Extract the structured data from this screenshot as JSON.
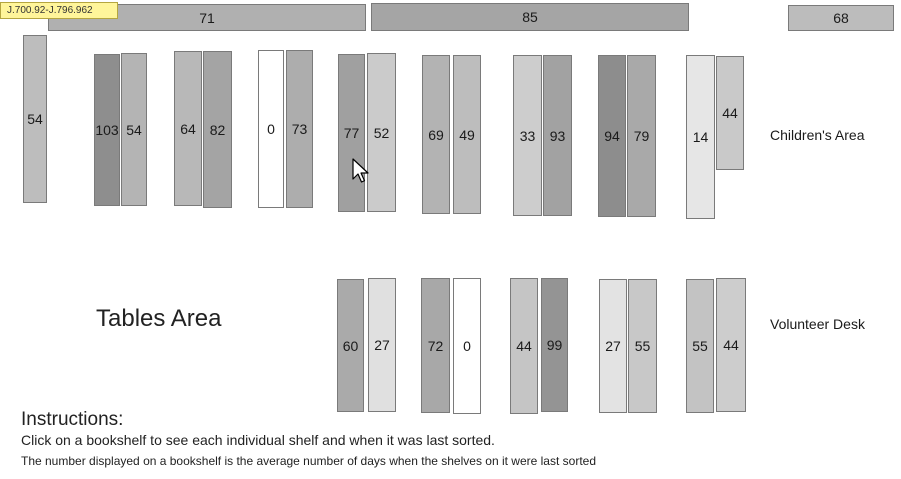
{
  "tooltip": "J.700.92-J.796.962",
  "top_shelves": [
    {
      "value": "71",
      "color": "#b0b0b0"
    },
    {
      "value": "85",
      "color": "#a5a5a5"
    },
    {
      "value": "68",
      "color": "#bcbcbc"
    }
  ],
  "bookshelves_row1": [
    {
      "value": "54",
      "color": "#bdbdbd"
    },
    {
      "value": "103",
      "color": "#8e8e8e"
    },
    {
      "value": "54",
      "color": "#b4b4b4"
    },
    {
      "value": "64",
      "color": "#b8b8b8"
    },
    {
      "value": "82",
      "color": "#a4a4a4"
    },
    {
      "value": "0",
      "color": "#ffffff"
    },
    {
      "value": "73",
      "color": "#adadad"
    },
    {
      "value": "77",
      "color": "#a0a0a0"
    },
    {
      "value": "52",
      "color": "#cbcbcb"
    },
    {
      "value": "69",
      "color": "#b3b3b3"
    },
    {
      "value": "49",
      "color": "#bdbdbd"
    },
    {
      "value": "33",
      "color": "#cdcdcd"
    },
    {
      "value": "93",
      "color": "#a2a2a2"
    },
    {
      "value": "94",
      "color": "#8d8d8d"
    },
    {
      "value": "79",
      "color": "#a9a9a9"
    },
    {
      "value": "14",
      "color": "#e6e6e6"
    },
    {
      "value": "44",
      "color": "#c9c9c9"
    }
  ],
  "bookshelves_row2": [
    {
      "value": "60",
      "color": "#aaaaaa"
    },
    {
      "value": "27",
      "color": "#e0e0e0"
    },
    {
      "value": "72",
      "color": "#a8a8a8"
    },
    {
      "value": "0",
      "color": "#ffffff"
    },
    {
      "value": "44",
      "color": "#c5c5c5"
    },
    {
      "value": "99",
      "color": "#949494"
    },
    {
      "value": "27",
      "color": "#e3e3e3"
    },
    {
      "value": "55",
      "color": "#c8c8c8"
    },
    {
      "value": "55",
      "color": "#c3c3c3"
    },
    {
      "value": "44",
      "color": "#cdcdcd"
    }
  ],
  "labels": {
    "childrens_area": "Children's Area",
    "volunteer_desk": "Volunteer Desk",
    "tables_area": "Tables Area"
  },
  "instructions": {
    "title": "Instructions:",
    "line1": "Click on a bookshelf to see each individual shelf and when it was last sorted.",
    "line2": "The number displayed on a bookshelf is the average number of days when the shelves on it were last sorted"
  }
}
